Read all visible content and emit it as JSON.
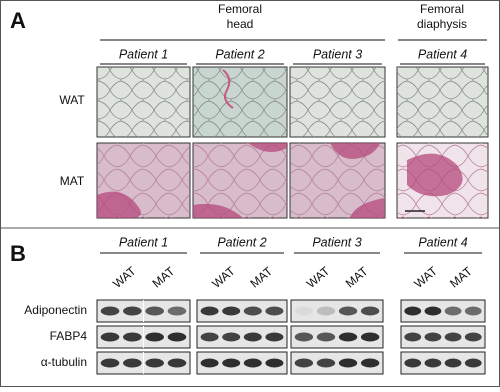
{
  "panel_a": {
    "label": "A",
    "groups": [
      {
        "title_lines": [
          "Femoral",
          "head"
        ]
      },
      {
        "title_lines": [
          "Femoral",
          "diaphysis"
        ]
      }
    ],
    "patients": [
      "Patient 1",
      "Patient 2",
      "Patient 3",
      "Patient 4"
    ],
    "rows": [
      "WAT",
      "MAT"
    ]
  },
  "panel_b": {
    "label": "B",
    "patients": [
      {
        "name": "Patient 1",
        "lanes": [
          "WAT",
          "MAT"
        ]
      },
      {
        "name": "Patient 2",
        "lanes": [
          "WAT",
          "MAT"
        ]
      },
      {
        "name": "Patient 3",
        "lanes": [
          "WAT",
          "MAT"
        ]
      },
      {
        "name": "Patient 4",
        "lanes": [
          "WAT",
          "MAT"
        ]
      }
    ],
    "proteins": [
      "Adiponectin",
      "FABP4",
      "α-tubulin"
    ]
  }
}
